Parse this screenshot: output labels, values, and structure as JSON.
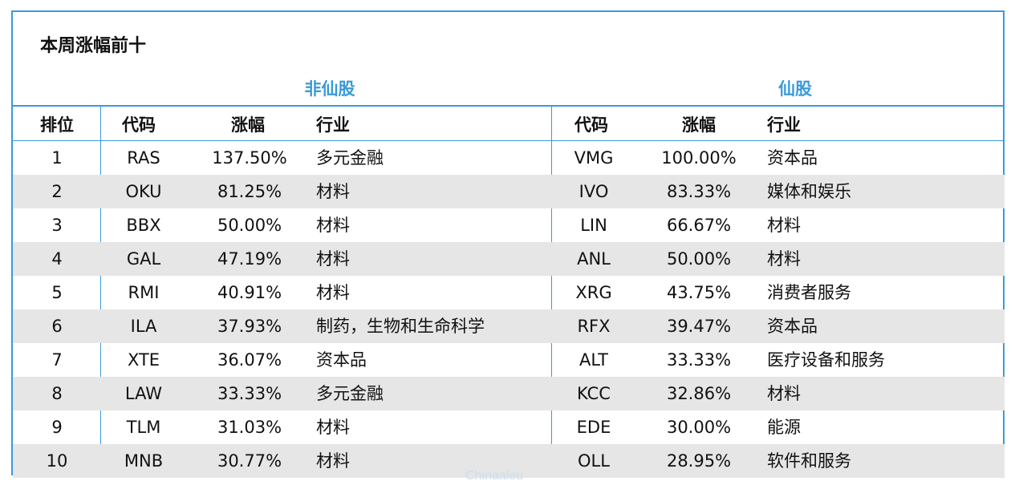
{
  "title": "本周涨幅前十",
  "groups": {
    "left": "非仙股",
    "right": "仙股"
  },
  "headers": {
    "rank": "排位",
    "code": "代码",
    "gain": "涨幅",
    "industry": "行业",
    "code2": "代码",
    "gain2": "涨幅",
    "industry2": "行业"
  },
  "rows": [
    {
      "rank": "1",
      "code": "RAS",
      "gain": "137.50%",
      "industry": "多元金融",
      "code2": "VMG",
      "gain2": "100.00%",
      "industry2": "资本品"
    },
    {
      "rank": "2",
      "code": "OKU",
      "gain": "81.25%",
      "industry": "材料",
      "code2": "IVO",
      "gain2": "83.33%",
      "industry2": "媒体和娱乐"
    },
    {
      "rank": "3",
      "code": "BBX",
      "gain": "50.00%",
      "industry": "材料",
      "code2": "LIN",
      "gain2": "66.67%",
      "industry2": "材料"
    },
    {
      "rank": "4",
      "code": "GAL",
      "gain": "47.19%",
      "industry": "材料",
      "code2": "ANL",
      "gain2": "50.00%",
      "industry2": "材料"
    },
    {
      "rank": "5",
      "code": "RMI",
      "gain": "40.91%",
      "industry": "材料",
      "code2": "XRG",
      "gain2": "43.75%",
      "industry2": "消费者服务"
    },
    {
      "rank": "6",
      "code": "ILA",
      "gain": "37.93%",
      "industry": "制药，生物和生命科学",
      "code2": "RFX",
      "gain2": "39.47%",
      "industry2": "资本品"
    },
    {
      "rank": "7",
      "code": "XTE",
      "gain": "36.07%",
      "industry": "资本品",
      "code2": "ALT",
      "gain2": "33.33%",
      "industry2": "医疗设备和服务"
    },
    {
      "rank": "8",
      "code": "LAW",
      "gain": "33.33%",
      "industry": "多元金融",
      "code2": "KCC",
      "gain2": "32.86%",
      "industry2": "材料"
    },
    {
      "rank": "9",
      "code": "TLM",
      "gain": "31.03%",
      "industry": "材料",
      "code2": "EDE",
      "gain2": "30.00%",
      "industry2": "能源"
    },
    {
      "rank": "10",
      "code": "MNB",
      "gain": "30.77%",
      "industry": "材料",
      "code2": "OLL",
      "gain2": "28.95%",
      "industry2": "软件和服务"
    }
  ],
  "watermark": "Chinaaleu",
  "colors": {
    "accent": "#3b9ad9",
    "row_shade": "#e6e6e6",
    "text": "#111111"
  }
}
